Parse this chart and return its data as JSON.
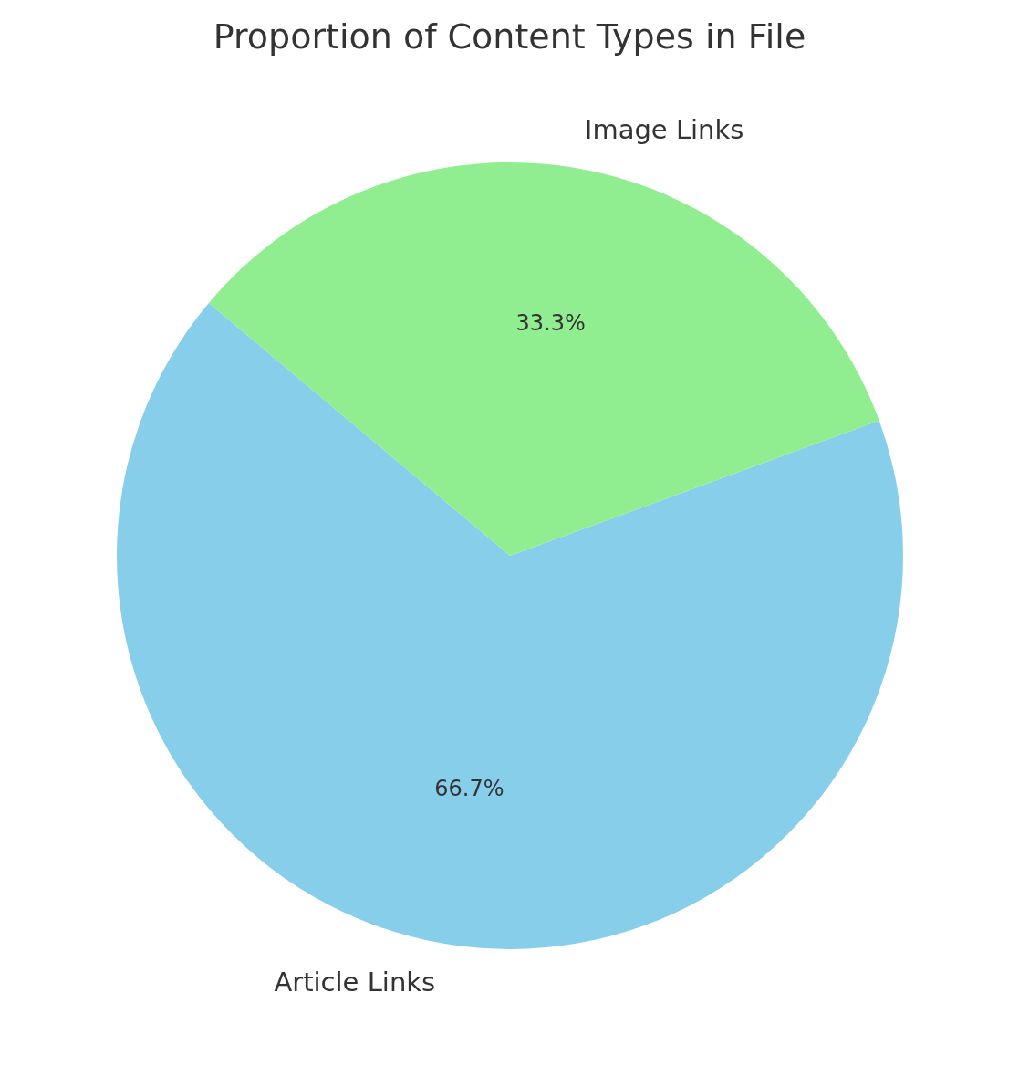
{
  "chart_data": {
    "type": "pie",
    "title": "Proportion of Content Types in File",
    "categories": [
      "Article Links",
      "Image Links"
    ],
    "values": [
      66.7,
      33.3
    ],
    "colors": [
      "#87ceeb",
      "#90ee90"
    ],
    "value_labels": [
      "66.7%",
      "33.3%"
    ],
    "legend": false
  }
}
